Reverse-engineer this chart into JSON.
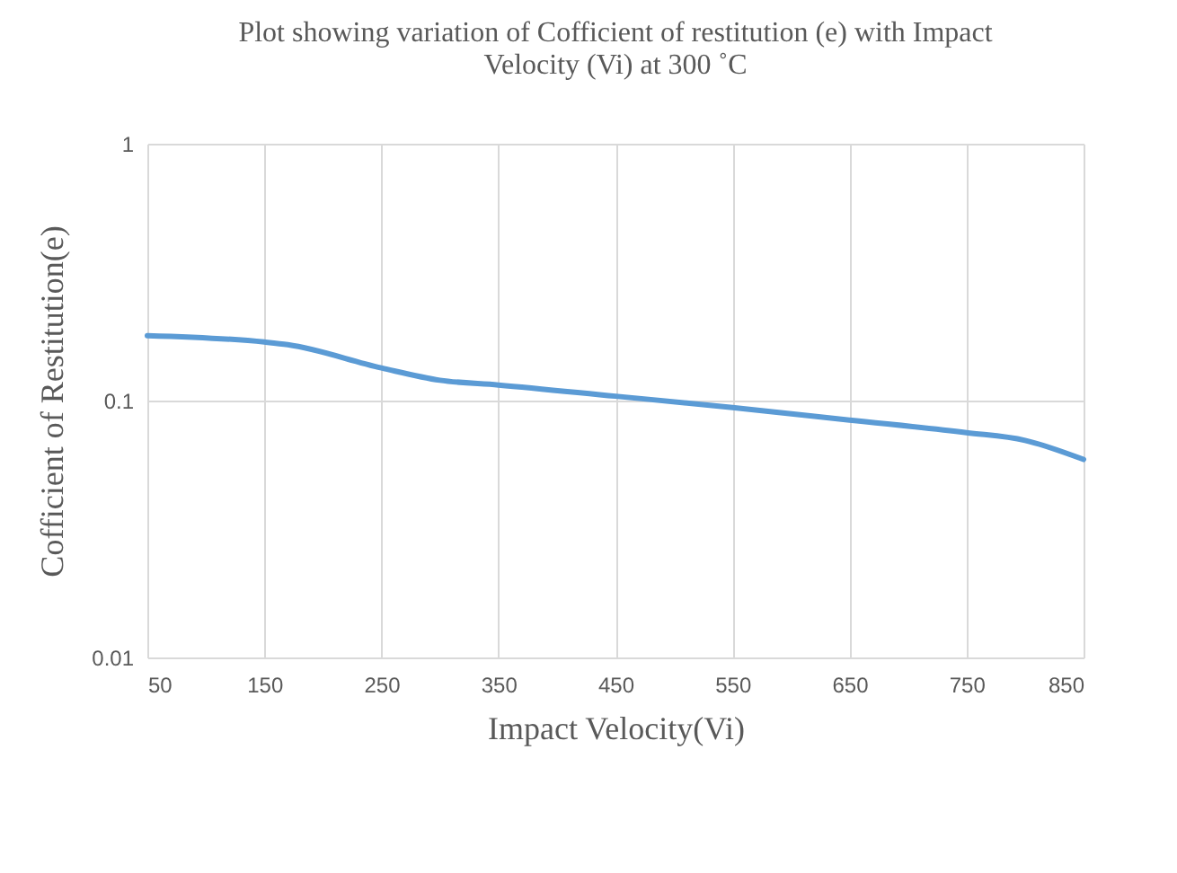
{
  "chart_data": {
    "type": "line",
    "title": [
      "Plot showing variation of Cofficient of restitution (e) with Impact",
      "Velocity (Vi) at  300 ˚C"
    ],
    "xlabel": "Impact Velocity(Vi)",
    "ylabel": "Cofficient of Restitution(e)",
    "x": [
      50,
      150,
      170,
      250,
      300,
      350,
      450,
      550,
      650,
      750,
      800,
      850
    ],
    "series": [
      {
        "color": "#5b9bd5",
        "values": [
          0.179,
          0.169,
          0.165,
          0.134,
          0.12,
          0.115,
          0.104,
          0.094,
          0.084,
          0.075,
          0.07,
          0.059
        ]
      }
    ],
    "xlim": [
      50,
      850
    ],
    "xticks": [
      50,
      150,
      250,
      350,
      450,
      550,
      650,
      750,
      850
    ],
    "ylim": [
      0.01,
      1
    ],
    "yticks": [
      0.01,
      0.1,
      1
    ],
    "log": "y",
    "grid": true,
    "marker": "none",
    "line_style": "solid",
    "legend": false
  }
}
